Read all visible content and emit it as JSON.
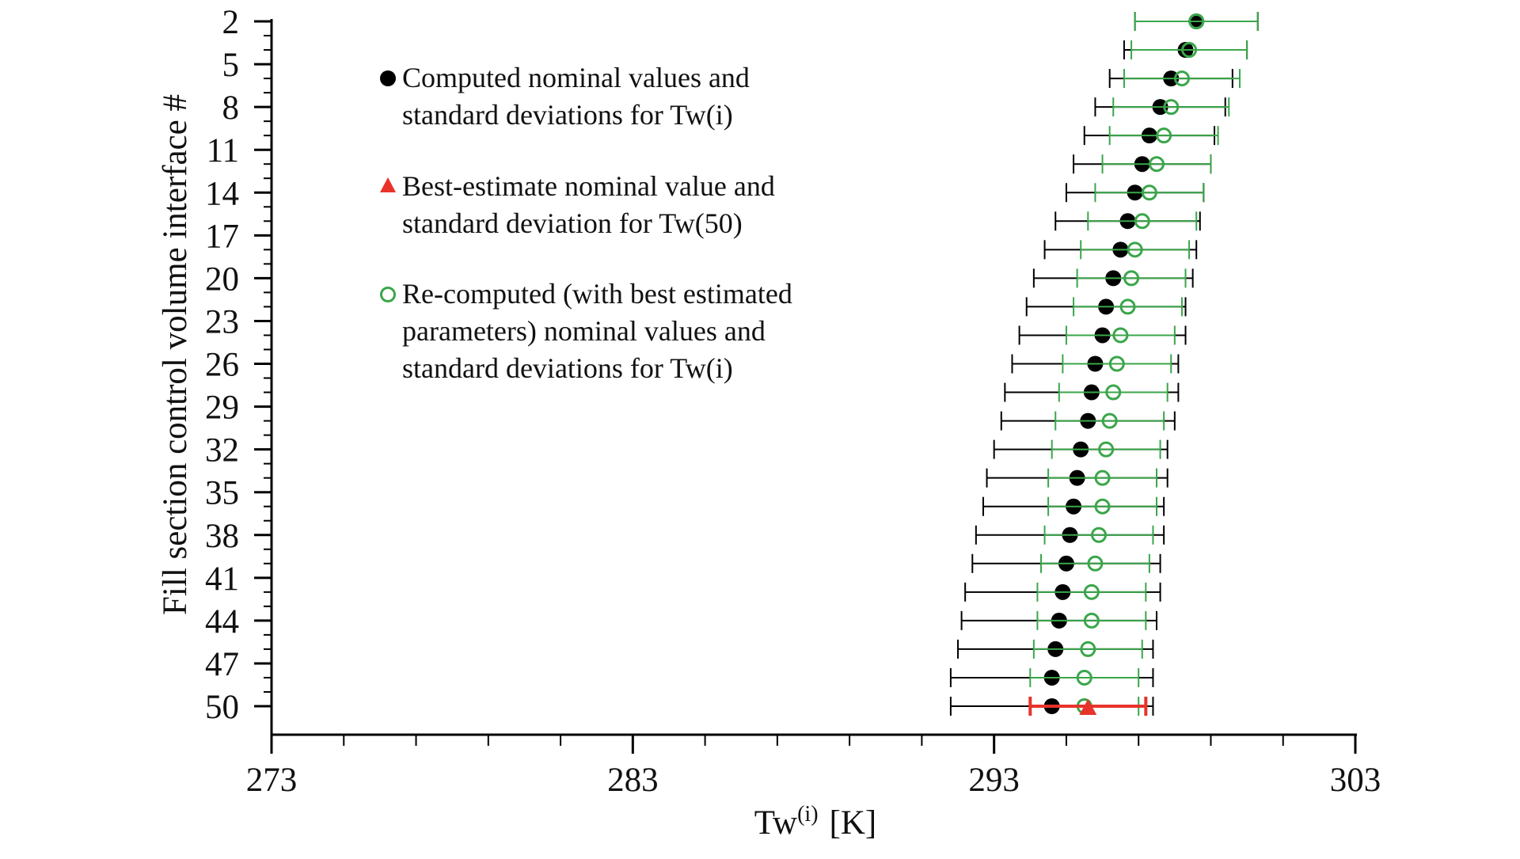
{
  "colors": {
    "computed": "#000000",
    "best_estimate": "#e8332a",
    "recomputed": "#3aa64a",
    "axis": "#000000"
  },
  "chart_data": {
    "type": "scatter",
    "orientation": "horizontal-error-bars",
    "xlabel": {
      "base": "Tw",
      "superscript": "(i)",
      "unit": "[K]"
    },
    "ylabel": "Fill section control volume interface #",
    "xlim": [
      273,
      303
    ],
    "x_major_ticks": [
      273,
      283,
      293,
      303
    ],
    "x_minor_step": 2,
    "ylim": [
      2,
      50
    ],
    "y_reversed": true,
    "y_ticks": [
      2,
      5,
      8,
      11,
      14,
      17,
      20,
      23,
      26,
      29,
      32,
      35,
      38,
      41,
      44,
      47,
      50
    ],
    "grid": false,
    "legend_position": "top-left",
    "legend": {
      "computed_lines": [
        "Computed nominal values and",
        "standard deviations for Tw(i)"
      ],
      "best_estimate_lines": [
        "Best-estimate nominal value and",
        "standard deviation for Tw(50)"
      ],
      "recomputed_lines": [
        "Re-computed (with best estimated",
        "parameters) nominal values and",
        "standard deviations for Tw(i)"
      ]
    },
    "series": [
      {
        "key": "computed",
        "marker": "filled-circle",
        "points": [
          {
            "y": 2,
            "x": 298.6,
            "err": 1.7
          },
          {
            "y": 4,
            "x": 298.3,
            "err": 1.7
          },
          {
            "y": 6,
            "x": 297.9,
            "err": 1.7
          },
          {
            "y": 8,
            "x": 297.6,
            "err": 1.8
          },
          {
            "y": 10,
            "x": 297.3,
            "err": 1.8
          },
          {
            "y": 12,
            "x": 297.1,
            "err": 1.9
          },
          {
            "y": 14,
            "x": 296.9,
            "err": 1.9
          },
          {
            "y": 16,
            "x": 296.7,
            "err": 2.0
          },
          {
            "y": 18,
            "x": 296.5,
            "err": 2.1
          },
          {
            "y": 20,
            "x": 296.3,
            "err": 2.2
          },
          {
            "y": 22,
            "x": 296.1,
            "err": 2.2
          },
          {
            "y": 24,
            "x": 296.0,
            "err": 2.3
          },
          {
            "y": 26,
            "x": 295.8,
            "err": 2.3
          },
          {
            "y": 28,
            "x": 295.7,
            "err": 2.4
          },
          {
            "y": 30,
            "x": 295.6,
            "err": 2.4
          },
          {
            "y": 32,
            "x": 295.4,
            "err": 2.4
          },
          {
            "y": 34,
            "x": 295.3,
            "err": 2.5
          },
          {
            "y": 36,
            "x": 295.2,
            "err": 2.5
          },
          {
            "y": 38,
            "x": 295.1,
            "err": 2.6
          },
          {
            "y": 40,
            "x": 295.0,
            "err": 2.6
          },
          {
            "y": 42,
            "x": 294.9,
            "err": 2.7
          },
          {
            "y": 44,
            "x": 294.8,
            "err": 2.7
          },
          {
            "y": 46,
            "x": 294.7,
            "err": 2.7
          },
          {
            "y": 48,
            "x": 294.6,
            "err": 2.8
          },
          {
            "y": 50,
            "x": 294.6,
            "err": 2.8
          }
        ]
      },
      {
        "key": "recomputed",
        "marker": "open-circle",
        "points": [
          {
            "y": 2,
            "x": 298.6,
            "err": 1.7
          },
          {
            "y": 4,
            "x": 298.4,
            "err": 1.6
          },
          {
            "y": 6,
            "x": 298.2,
            "err": 1.6
          },
          {
            "y": 8,
            "x": 297.9,
            "err": 1.6
          },
          {
            "y": 10,
            "x": 297.7,
            "err": 1.5
          },
          {
            "y": 12,
            "x": 297.5,
            "err": 1.5
          },
          {
            "y": 14,
            "x": 297.3,
            "err": 1.5
          },
          {
            "y": 16,
            "x": 297.1,
            "err": 1.5
          },
          {
            "y": 18,
            "x": 296.9,
            "err": 1.5
          },
          {
            "y": 20,
            "x": 296.8,
            "err": 1.5
          },
          {
            "y": 22,
            "x": 296.7,
            "err": 1.5
          },
          {
            "y": 24,
            "x": 296.5,
            "err": 1.5
          },
          {
            "y": 26,
            "x": 296.4,
            "err": 1.5
          },
          {
            "y": 28,
            "x": 296.3,
            "err": 1.5
          },
          {
            "y": 30,
            "x": 296.2,
            "err": 1.5
          },
          {
            "y": 32,
            "x": 296.1,
            "err": 1.5
          },
          {
            "y": 34,
            "x": 296.0,
            "err": 1.5
          },
          {
            "y": 36,
            "x": 296.0,
            "err": 1.5
          },
          {
            "y": 38,
            "x": 295.9,
            "err": 1.5
          },
          {
            "y": 40,
            "x": 295.8,
            "err": 1.5
          },
          {
            "y": 42,
            "x": 295.7,
            "err": 1.5
          },
          {
            "y": 44,
            "x": 295.7,
            "err": 1.5
          },
          {
            "y": 46,
            "x": 295.6,
            "err": 1.5
          },
          {
            "y": 48,
            "x": 295.5,
            "err": 1.5
          },
          {
            "y": 50,
            "x": 295.5,
            "err": 1.5
          }
        ]
      },
      {
        "key": "best_estimate",
        "marker": "triangle",
        "points": [
          {
            "y": 50,
            "x": 295.6,
            "err": 1.6
          }
        ]
      }
    ]
  }
}
